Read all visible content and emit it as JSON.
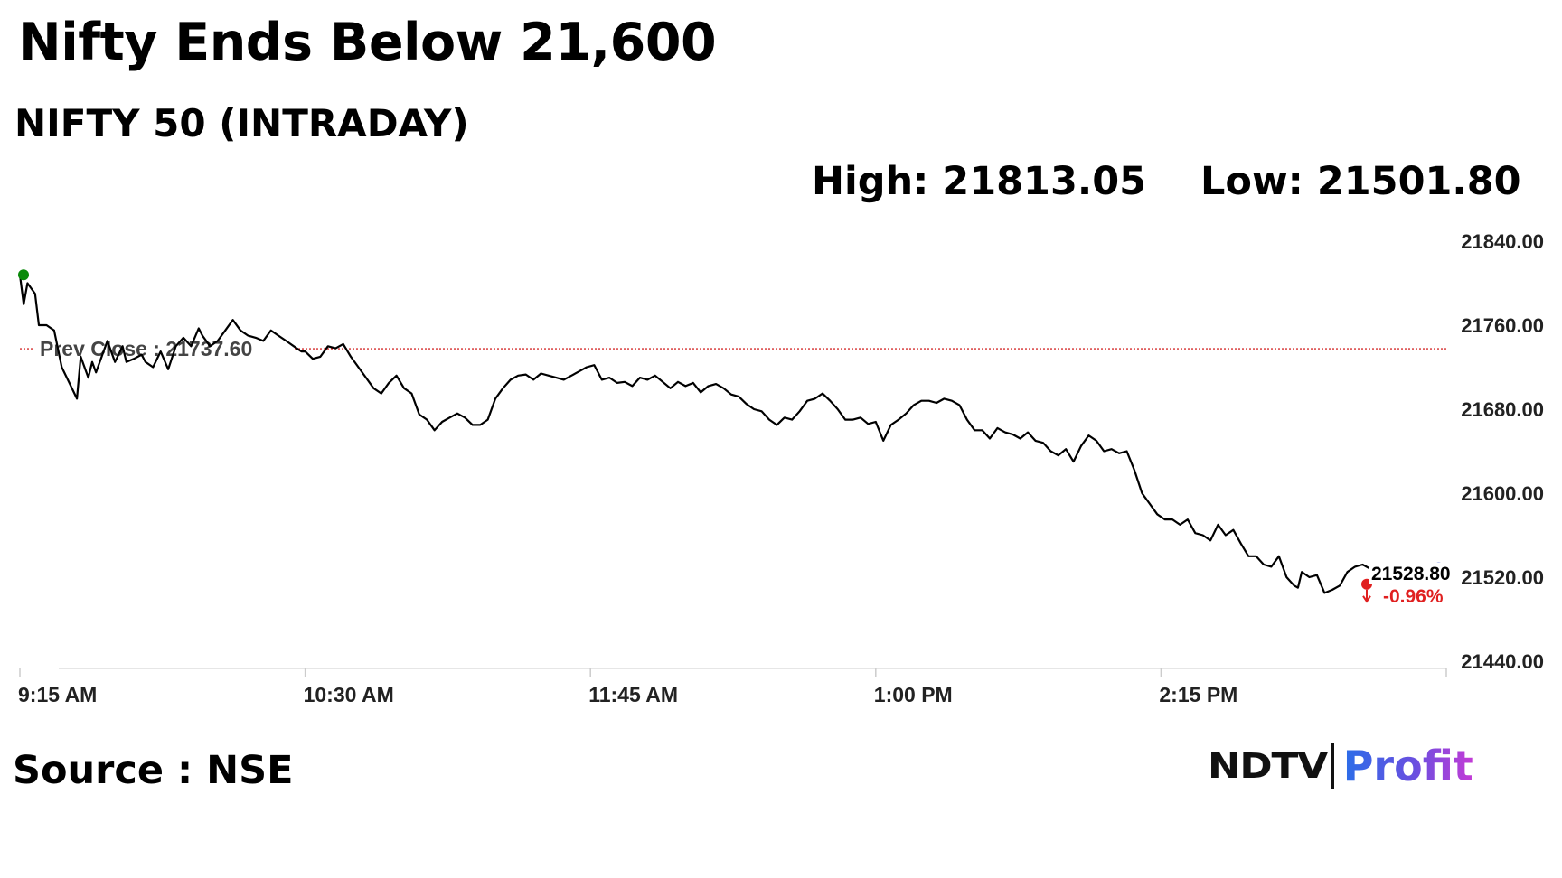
{
  "headline": "Nifty Ends Below 21,600",
  "subheadline": "NIFTY 50 (INTRADAY)",
  "high_text": "High: 21813.05",
  "low_text": "Low: 21501.80",
  "source_text": "Source : NSE",
  "logo": {
    "part1": "NDTV",
    "part2": "Profit"
  },
  "colors": {
    "line": "#000000",
    "prev_close": "#cc0000",
    "start_marker": "#0a8a0a",
    "last_marker": "#e02020",
    "end_marker": "#1030d0",
    "change": "#e02020"
  },
  "chart_data": {
    "type": "line",
    "ylim": [
      21440,
      21840
    ],
    "xlim_minutes": [
      555,
      930
    ],
    "y_ticks": [
      21840,
      21760,
      21680,
      21600,
      21520,
      21440
    ],
    "y_tick_labels": [
      "21840.00",
      "21760.00",
      "21680.00",
      "21600.00",
      "21520.00",
      "21440.00"
    ],
    "x_ticks": [
      555,
      630,
      705,
      780,
      855
    ],
    "x_tick_labels": [
      "9:15 AM",
      "10:30 AM",
      "11:45 AM",
      "1:00 PM",
      "2:15 PM"
    ],
    "prev_close": 21737.6,
    "prev_close_label": "Prev Close : 21737.60",
    "high": 21813.05,
    "low": 21501.8,
    "last_value": 21528.8,
    "last_value_label": "21528.80",
    "change_label": "-0.96%",
    "series": [
      {
        "x": [
          555,
          556,
          557,
          559,
          560,
          562,
          564,
          566,
          568,
          570,
          571,
          573,
          574,
          575,
          578,
          580,
          582,
          583,
          585,
          587,
          588,
          590,
          592,
          594,
          596,
          598,
          600,
          602,
          603,
          605,
          607,
          609,
          611,
          613,
          615,
          617,
          619,
          621,
          623,
          625,
          627,
          629,
          630,
          632,
          634,
          636,
          638,
          640,
          642,
          644,
          646,
          648,
          650,
          652,
          654,
          656,
          658,
          660,
          662,
          664,
          666,
          668,
          670,
          672,
          674,
          676,
          678,
          680,
          682,
          684,
          686,
          688,
          690,
          692,
          694,
          696,
          698,
          700,
          702,
          704,
          706,
          708,
          710,
          712,
          714,
          716,
          718,
          720,
          722,
          724,
          726,
          728,
          730,
          732,
          734,
          736,
          738,
          740,
          742,
          744,
          746,
          748,
          750,
          752,
          754,
          756,
          758,
          760,
          762,
          764,
          766,
          768,
          770,
          772,
          774,
          776,
          778,
          780,
          782,
          784,
          786,
          788,
          790,
          792,
          794,
          796,
          798,
          800,
          802,
          804,
          806,
          808,
          810,
          812,
          814,
          816,
          818,
          820,
          822,
          824,
          826,
          828,
          830,
          832,
          834,
          836,
          838,
          840,
          842,
          844,
          846,
          848,
          850,
          852,
          854,
          856,
          858,
          860,
          862,
          864,
          866,
          868,
          870,
          872,
          874,
          876,
          878,
          880,
          882,
          884,
          886,
          888,
          890,
          891,
          892,
          894,
          896,
          898,
          900,
          902,
          904,
          906,
          908,
          910,
          912,
          914,
          916,
          918,
          920,
          922,
          924,
          926,
          928
        ],
        "y": [
          21808,
          21780,
          21800,
          21790,
          21760,
          21760,
          21755,
          21720,
          21705,
          21690,
          21730,
          21710,
          21725,
          21715,
          21745,
          21725,
          21740,
          21725,
          21728,
          21732,
          21725,
          21720,
          21735,
          21718,
          21740,
          21748,
          21740,
          21757,
          21750,
          21740,
          21745,
          21755,
          21765,
          21755,
          21750,
          21748,
          21745,
          21755,
          21750,
          21745,
          21740,
          21735,
          21735,
          21728,
          21730,
          21740,
          21738,
          21742,
          21730,
          21720,
          21710,
          21700,
          21695,
          21705,
          21712,
          21700,
          21695,
          21675,
          21670,
          21660,
          21668,
          21672,
          21676,
          21672,
          21665,
          21665,
          21670,
          21690,
          21700,
          21708,
          21712,
          21713,
          21708,
          21714,
          21712,
          21710,
          21708,
          21712,
          21716,
          21720,
          21722,
          21708,
          21710,
          21705,
          21706,
          21702,
          21710,
          21708,
          21712,
          21706,
          21700,
          21706,
          21702,
          21705,
          21696,
          21702,
          21704,
          21700,
          21694,
          21692,
          21685,
          21680,
          21678,
          21670,
          21665,
          21672,
          21670,
          21678,
          21688,
          21690,
          21695,
          21688,
          21680,
          21670,
          21670,
          21672,
          21666,
          21668,
          21650,
          21665,
          21670,
          21676,
          21684,
          21688,
          21688,
          21686,
          21690,
          21688,
          21684,
          21670,
          21660,
          21660,
          21652,
          21662,
          21658,
          21656,
          21652,
          21658,
          21650,
          21648,
          21640,
          21636,
          21642,
          21630,
          21645,
          21655,
          21650,
          21640,
          21642,
          21638,
          21640,
          21622,
          21600,
          21590,
          21580,
          21575,
          21575,
          21570,
          21575,
          21562,
          21560,
          21555,
          21570,
          21560,
          21565,
          21552,
          21540,
          21540,
          21532,
          21530,
          21540,
          21520,
          21512,
          21510,
          21525,
          21520,
          21522,
          21505,
          21508,
          21512,
          21525,
          21530,
          21532,
          21528,
          21530,
          21532,
          21528,
          21530,
          21532,
          21528,
          21530,
          21530,
          21529
        ]
      }
    ]
  }
}
